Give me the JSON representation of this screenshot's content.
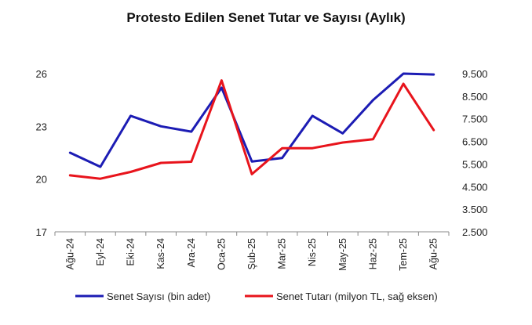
{
  "chart_data": {
    "type": "line",
    "title": "Protesto Edilen Senet Tutar ve Sayısı (Aylık)",
    "categories": [
      "Ağu-24",
      "Eyl-24",
      "Eki-24",
      "Kas-24",
      "Ara-24",
      "Oca-25",
      "Şub-25",
      "Mar-25",
      "Nis-25",
      "May-25",
      "Haz-25",
      "Tem-25",
      "Ağu-25"
    ],
    "series": [
      {
        "name": "Senet Sayısı (bin adet)",
        "axis": "left",
        "color": "#1c1cb4",
        "values": [
          21.5,
          20.7,
          23.6,
          23.0,
          22.7,
          25.2,
          21.0,
          21.2,
          23.6,
          22.6,
          24.5,
          26.0,
          25.95
        ]
      },
      {
        "name": "Senet Tutarı (milyon TL, sağ eksen)",
        "axis": "right",
        "color": "#e8141c",
        "values": [
          5.0,
          4.85,
          5.15,
          5.55,
          5.6,
          9.2,
          5.05,
          6.2,
          6.2,
          6.45,
          6.6,
          9.05,
          7.0
        ]
      }
    ],
    "y_left": {
      "ticks": [
        "17",
        "20",
        "23",
        "26"
      ],
      "range": [
        17,
        26
      ]
    },
    "y_right": {
      "ticks": [
        "2.500",
        "3.500",
        "4.500",
        "5.500",
        "6.500",
        "7.500",
        "8.500",
        "9.500"
      ],
      "range": [
        2.5,
        9.5
      ]
    },
    "grid": false,
    "legend_position": "bottom"
  }
}
